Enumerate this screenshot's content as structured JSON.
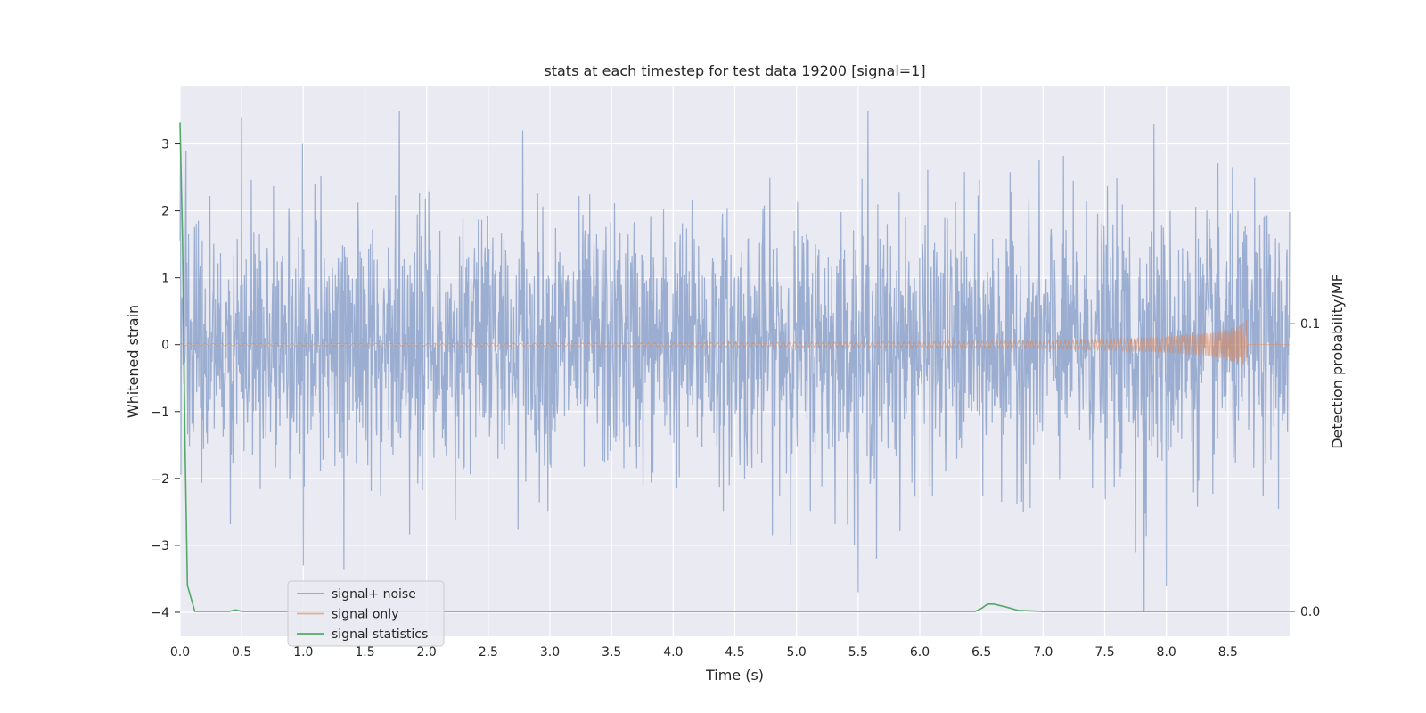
{
  "chart_data": {
    "type": "line",
    "title": "stats at each timestep for test data 19200 [signal=1]",
    "xlabel": "Time (s)",
    "ylabel": "Whitened strain",
    "y2label": "Detection probability/MF",
    "xlim": [
      0.0,
      9.0
    ],
    "ylim": [
      -4.36,
      3.86
    ],
    "y2lim": [
      -0.0087,
      0.1825
    ],
    "xticks": [
      0.0,
      0.5,
      1.0,
      1.5,
      2.0,
      2.5,
      3.0,
      3.5,
      4.0,
      4.5,
      5.0,
      5.5,
      6.0,
      6.5,
      7.0,
      7.5,
      8.0,
      8.5
    ],
    "xtick_labels": [
      "0.0",
      "0.5",
      "1.0",
      "1.5",
      "2.0",
      "2.5",
      "3.0",
      "3.5",
      "4.0",
      "4.5",
      "5.0",
      "5.5",
      "6.0",
      "6.5",
      "7.0",
      "7.5",
      "8.0",
      "8.5"
    ],
    "yticks": [
      3,
      2,
      1,
      0,
      -1,
      -2,
      -3,
      -4
    ],
    "ytick_labels": [
      "3",
      "2",
      "1",
      "0",
      "−1",
      "−2",
      "−3",
      "−4"
    ],
    "y2ticks": [
      0.1,
      0.0
    ],
    "y2tick_labels": [
      "0.1",
      "0.0"
    ],
    "grid": true,
    "legend_position": "lower-left",
    "colors": {
      "background": "#eaeaf2",
      "grid": "#ffffff",
      "noise": "#4c72b0",
      "signal": "#dd8452",
      "statistics": "#55a868"
    },
    "series": [
      {
        "name": "signal+ noise",
        "axis": "left",
        "description": "whitened strain samples, dense noise roughly within -3.7 to 3.5",
        "noise_points": [
          [
            0.05,
            2.9
          ],
          [
            0.5,
            3.4
          ],
          [
            1.0,
            -3.3
          ],
          [
            1.33,
            -3.35
          ],
          [
            1.78,
            3.5
          ],
          [
            2.78,
            3.2
          ],
          [
            5.5,
            -3.7
          ],
          [
            5.58,
            3.5
          ],
          [
            5.65,
            -3.2
          ],
          [
            7.82,
            -4.0
          ],
          [
            7.9,
            3.3
          ],
          [
            7.75,
            -3.1
          ],
          [
            8.0,
            -3.6
          ]
        ]
      },
      {
        "name": "signal only",
        "axis": "left",
        "description": "chirp waveform growing toward merger near 8.65 s",
        "envelope": [
          [
            0.0,
            0.015
          ],
          [
            2.0,
            0.02
          ],
          [
            4.0,
            0.03
          ],
          [
            6.0,
            0.045
          ],
          [
            7.0,
            0.06
          ],
          [
            7.5,
            0.08
          ],
          [
            8.0,
            0.12
          ],
          [
            8.3,
            0.17
          ],
          [
            8.5,
            0.23
          ],
          [
            8.6,
            0.3
          ],
          [
            8.65,
            0.38
          ],
          [
            8.66,
            0.0
          ],
          [
            9.0,
            0.0
          ]
        ]
      },
      {
        "name": "signal statistics",
        "axis": "right",
        "x": [
          0.0,
          0.02,
          0.04,
          0.06,
          0.12,
          0.2,
          0.4,
          0.45,
          0.5,
          1.0,
          2.0,
          3.0,
          4.0,
          5.0,
          6.0,
          6.45,
          6.5,
          6.55,
          6.6,
          6.7,
          6.8,
          7.0,
          8.0,
          9.0
        ],
        "y": [
          0.17,
          0.13,
          0.06,
          0.009,
          0.0,
          0.0,
          0.0,
          0.0005,
          0.0,
          0.0,
          0.0,
          0.0,
          0.0,
          0.0,
          0.0,
          0.0,
          0.001,
          0.0025,
          0.0025,
          0.0015,
          0.0003,
          0.0,
          0.0,
          0.0
        ]
      }
    ]
  }
}
